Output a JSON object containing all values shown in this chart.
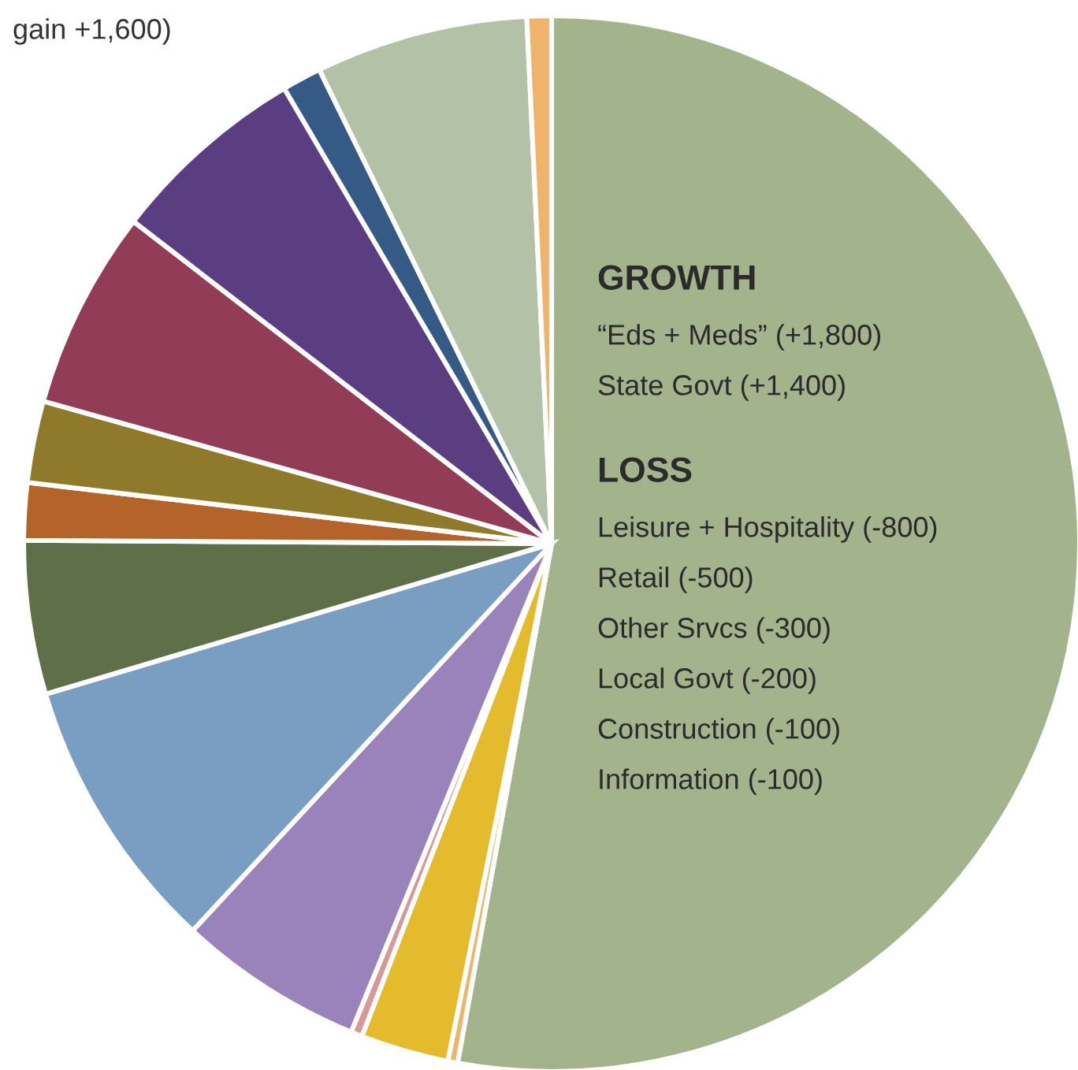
{
  "chart_data": {
    "type": "pie",
    "categories": [
      null,
      null,
      null,
      null,
      null,
      null,
      null,
      null,
      null,
      null,
      null,
      null,
      null,
      null
    ],
    "values": [
      52.85,
      0.3,
      2.7,
      0.35,
      5.7,
      8.5,
      4.7,
      1.75,
      2.5,
      6.1,
      6.1,
      1.2,
      6.5,
      0.75
    ],
    "colors": [
      "#a3b38c",
      "#f0b36b",
      "#e3bb2c",
      "#d59a98",
      "#9a82bb",
      "#7a9dc2",
      "#5f7048",
      "#b4632a",
      "#8f7a2c",
      "#923c58",
      "#5b3d82",
      "#345a85",
      "#b3c2a6",
      "#f0b36b"
    ],
    "annotations": [
      "gain +1,600)",
      "GROWTH",
      "“Eds + Meds” (+1,800)",
      "State Govt (+1,400)",
      "LOSS",
      "Leisure + Hospitality (-800)",
      "Retail (-500)",
      "Other Srvcs (-300)",
      "Local Govt (-200)",
      "Construction (-100)",
      "Information (-100)"
    ]
  }
}
